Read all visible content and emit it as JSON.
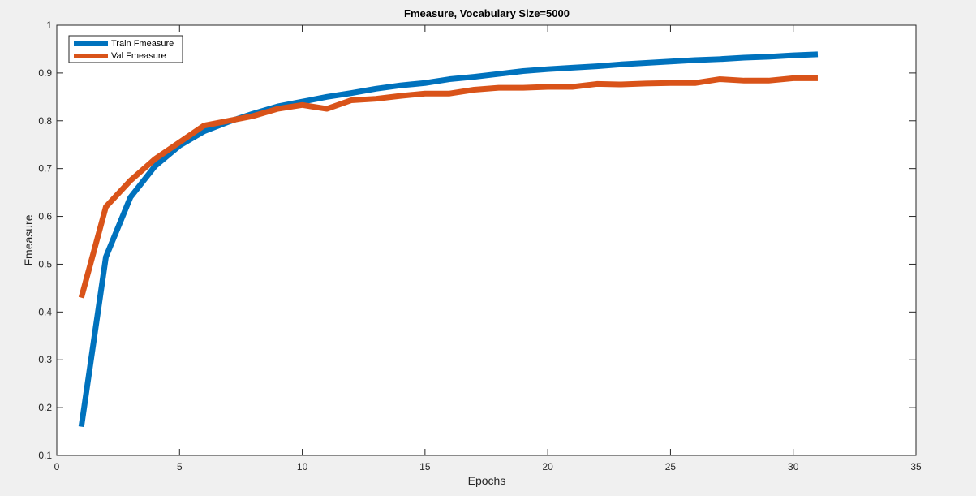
{
  "chart_data": {
    "type": "line",
    "title": "Fmeasure, Vocabulary Size=5000",
    "xlabel": "Epochs",
    "ylabel": "Fmeasure",
    "xlim": [
      0,
      35
    ],
    "ylim": [
      0.1,
      1
    ],
    "xticks": [
      "0",
      "5",
      "10",
      "15",
      "20",
      "25",
      "30",
      "35"
    ],
    "yticks": [
      "0.1",
      "0.2",
      "0.3",
      "0.4",
      "0.5",
      "0.6",
      "0.7",
      "0.8",
      "0.9",
      "1"
    ],
    "grid": false,
    "legend": "top-left",
    "x": [
      1,
      2,
      3,
      4,
      5,
      6,
      7,
      8,
      9,
      10,
      11,
      12,
      13,
      14,
      15,
      16,
      17,
      18,
      19,
      20,
      21,
      22,
      23,
      24,
      25,
      26,
      27,
      28,
      29,
      30,
      31
    ],
    "series": [
      {
        "name": "Train Fmeasure",
        "color": "#0072BD",
        "values": [
          0.16,
          0.515,
          0.64,
          0.705,
          0.748,
          0.778,
          0.798,
          0.815,
          0.83,
          0.84,
          0.85,
          0.858,
          0.867,
          0.874,
          0.879,
          0.887,
          0.892,
          0.898,
          0.904,
          0.908,
          0.911,
          0.914,
          0.918,
          0.921,
          0.924,
          0.927,
          0.929,
          0.932,
          0.934,
          0.937,
          0.939
        ]
      },
      {
        "name": "Val Fmeasure",
        "color": "#D95319",
        "values": [
          0.43,
          0.62,
          0.675,
          0.72,
          0.755,
          0.79,
          0.8,
          0.81,
          0.825,
          0.833,
          0.825,
          0.843,
          0.846,
          0.852,
          0.857,
          0.857,
          0.865,
          0.869,
          0.869,
          0.871,
          0.871,
          0.877,
          0.876,
          0.878,
          0.879,
          0.879,
          0.887,
          0.884,
          0.884,
          0.889,
          0.889
        ]
      }
    ]
  }
}
